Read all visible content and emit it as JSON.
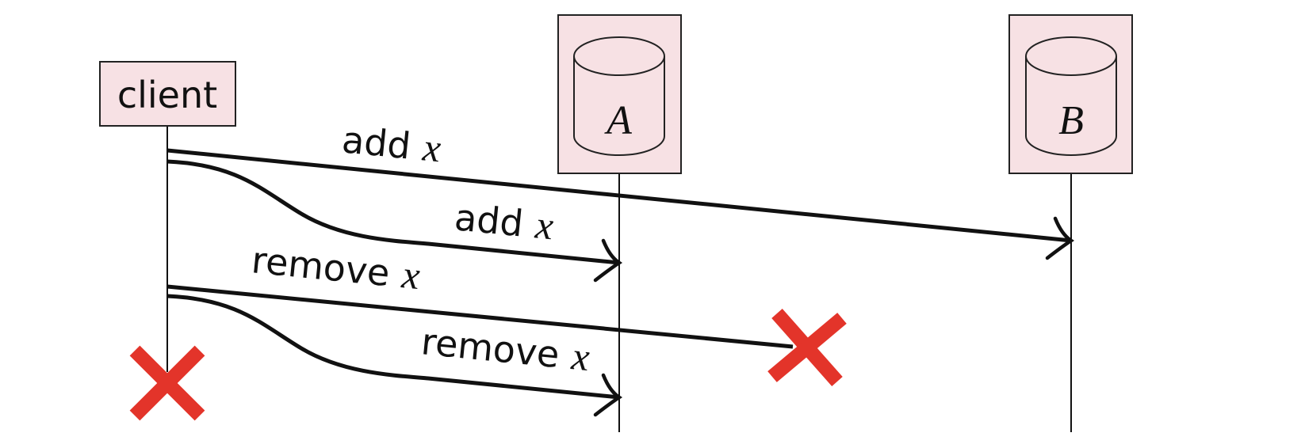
{
  "nodes": {
    "client": {
      "label": "client"
    },
    "db_a": {
      "label": "A"
    },
    "db_b": {
      "label": "B"
    }
  },
  "messages": [
    {
      "verb": "add",
      "var": "x",
      "from": "client",
      "to": "B",
      "status": "delivered"
    },
    {
      "verb": "add",
      "var": "x",
      "from": "client",
      "to": "A",
      "status": "delivered"
    },
    {
      "verb": "remove",
      "var": "x",
      "from": "client",
      "to": "B",
      "status": "lost"
    },
    {
      "verb": "remove",
      "var": "x",
      "from": "client",
      "to": "A",
      "status": "delivered"
    }
  ],
  "failures": [
    {
      "at": "client",
      "icon": "red-cross-icon"
    },
    {
      "at": "message-remove-to-b",
      "icon": "red-cross-icon"
    }
  ],
  "colors": {
    "box_fill": "#f7e1e4",
    "line": "#111111",
    "cross": "#e3342a"
  }
}
